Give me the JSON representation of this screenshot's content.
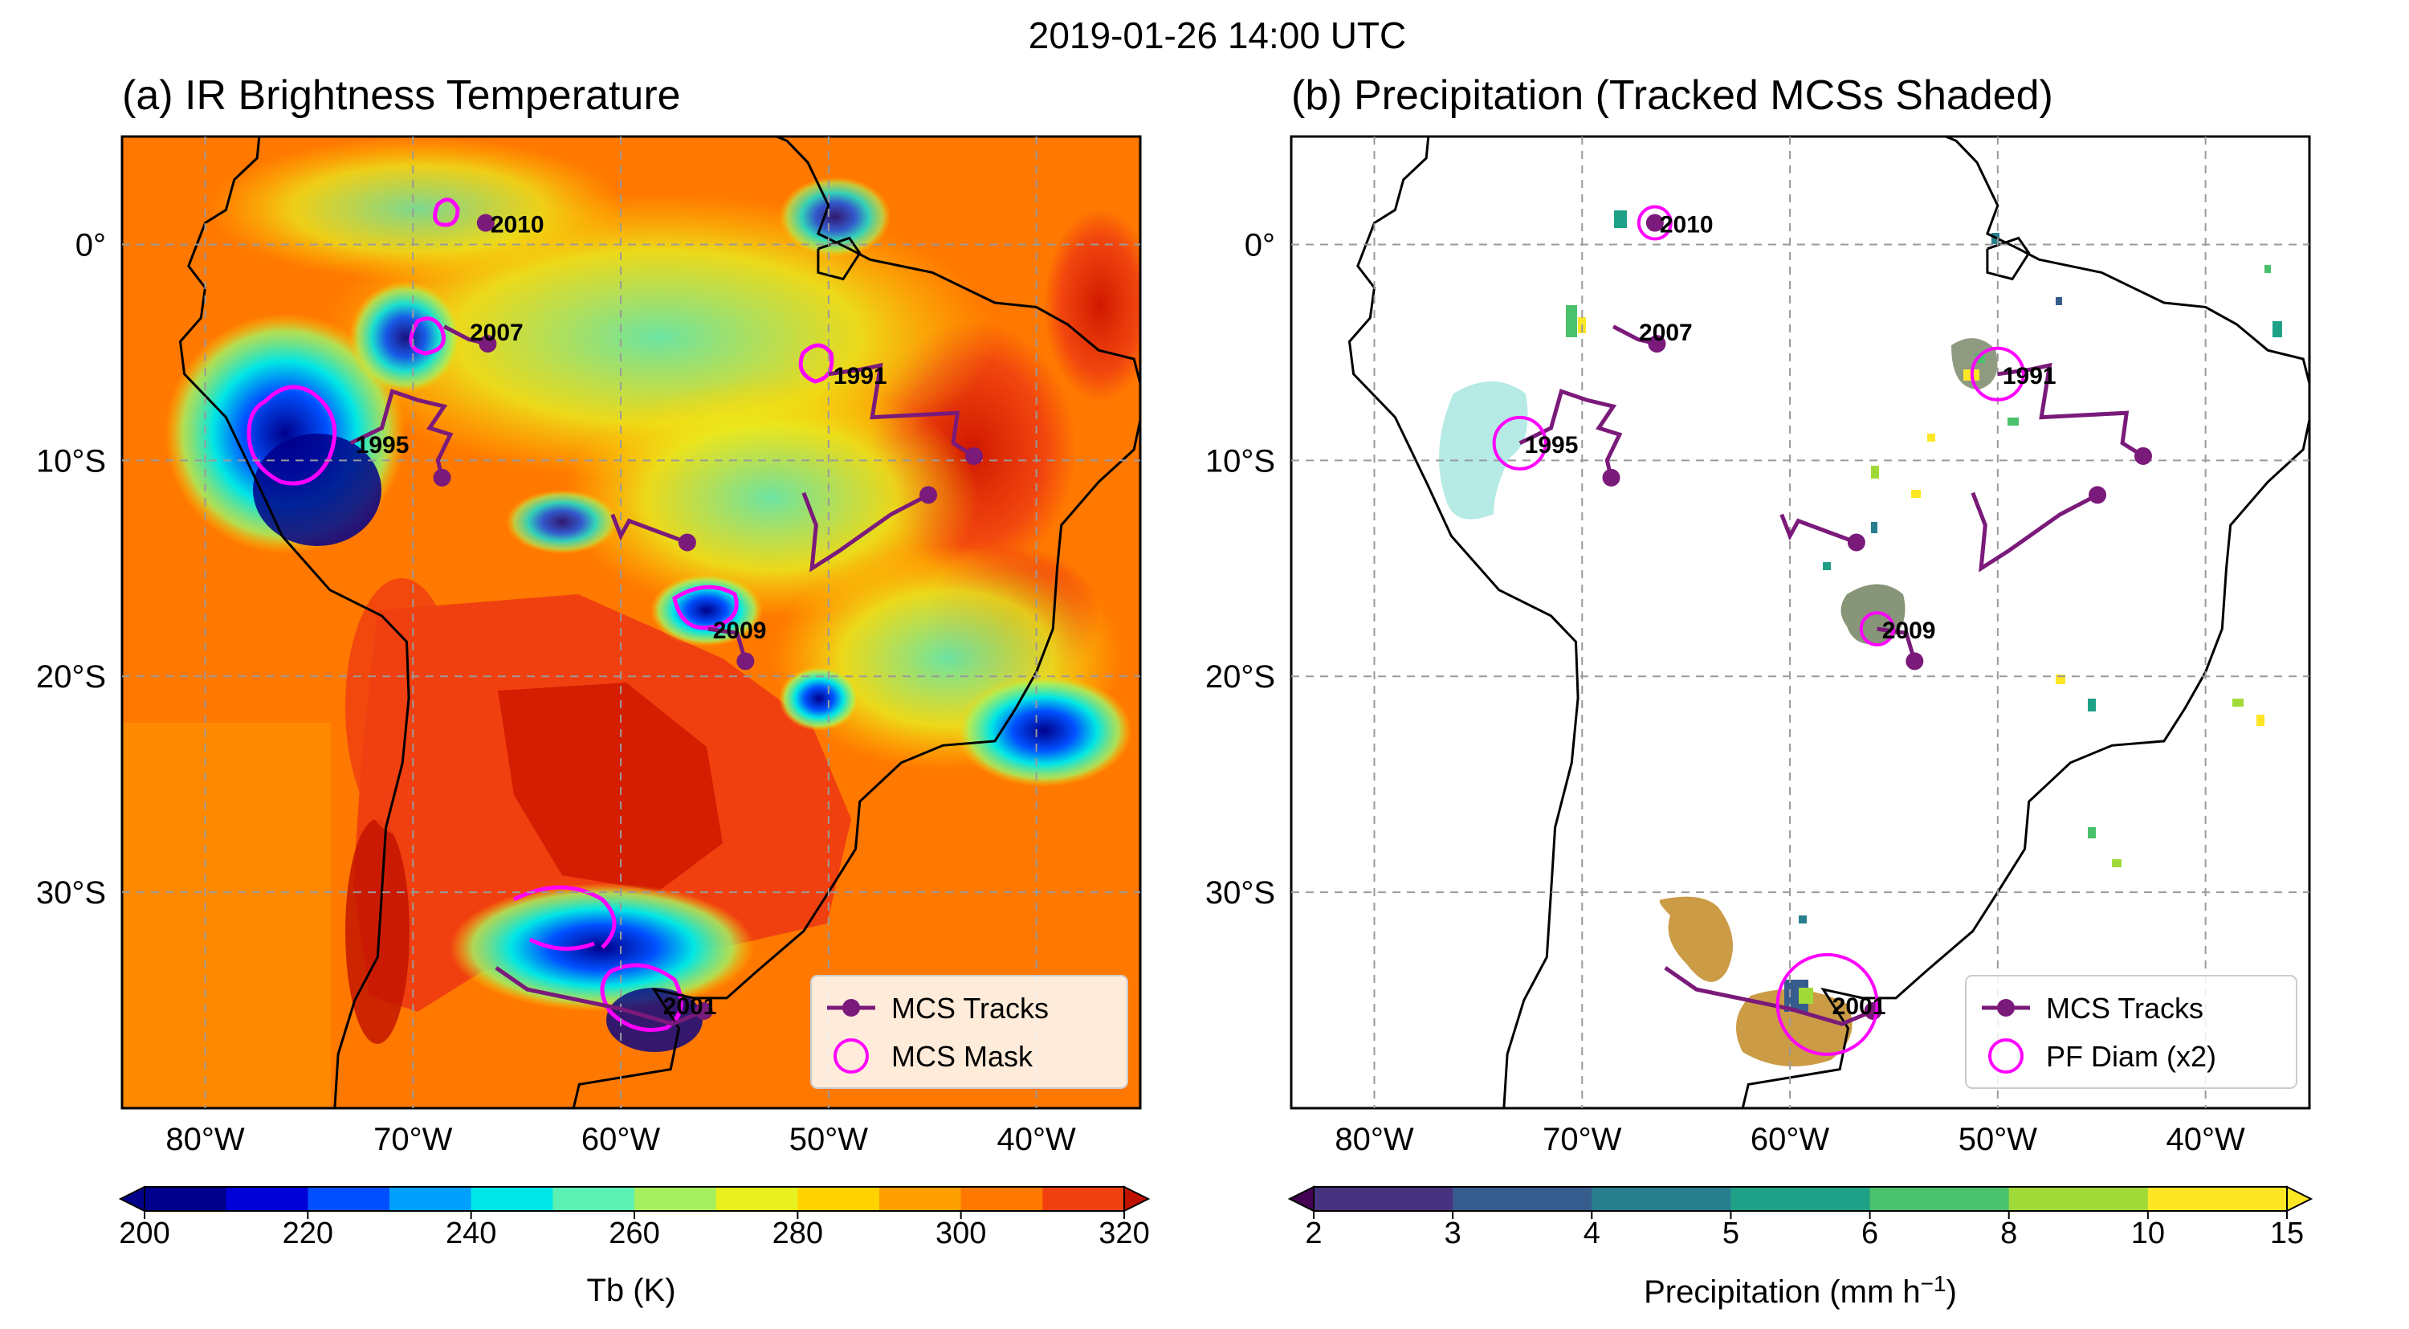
{
  "figure": {
    "suptitle": "2019-01-26 14:00 UTC"
  },
  "panel_a": {
    "title": "(a) IR Brightness Temperature",
    "legend": {
      "tracks": "MCS Tracks",
      "mask": "MCS Mask"
    },
    "colorbar": {
      "label": "Tb (K)",
      "ticks": [
        "200",
        "220",
        "240",
        "260",
        "280",
        "300",
        "320"
      ],
      "colors": [
        "#00008a",
        "#0000d8",
        "#0050ff",
        "#00a0ff",
        "#00e6e6",
        "#5cf0b4",
        "#a6f060",
        "#e8f020",
        "#ffd200",
        "#ffa000",
        "#ff7800",
        "#f04010",
        "#c01000"
      ]
    }
  },
  "panel_b": {
    "title": "(b) Precipitation (Tracked MCSs Shaded)",
    "legend": {
      "tracks": "MCS Tracks",
      "mask": "PF Diam (x2)"
    },
    "colorbar": {
      "label": "Precipitation (mm h",
      "label_sup": "−1",
      "label_end": ")",
      "ticks": [
        "2",
        "3",
        "4",
        "5",
        "6",
        "8",
        "10",
        "15"
      ],
      "colors": [
        "#46327e",
        "#365c8d",
        "#277f8e",
        "#1fa187",
        "#4ac16d",
        "#a0da39",
        "#fde725"
      ]
    }
  },
  "axes": {
    "lon_labels": [
      "80°W",
      "70°W",
      "60°W",
      "50°W",
      "40°W"
    ],
    "lat_labels": [
      "0°",
      "10°S",
      "20°S",
      "30°S"
    ]
  },
  "colors": {
    "track": "#7a1a7a",
    "mask": "#ff00ff",
    "coast": "#000000",
    "grid": "#9a9a9a"
  },
  "mcs": [
    {
      "id": "2010",
      "lon": -66.5,
      "lat": 1.0,
      "track": [
        [
          -66.5,
          1.0
        ]
      ]
    },
    {
      "id": "2007",
      "lon": -67.5,
      "lat": -4.0,
      "track": [
        [
          -68.5,
          -3.8
        ],
        [
          -67.3,
          -4.4
        ],
        [
          -66.4,
          -4.6
        ]
      ]
    },
    {
      "id": "1991",
      "lon": -50.0,
      "lat": -6.0,
      "track": [
        [
          -50.0,
          -6.0
        ],
        [
          -48.5,
          -5.8
        ],
        [
          -47.5,
          -5.6
        ],
        [
          -47.9,
          -8.0
        ],
        [
          -43.8,
          -7.8
        ],
        [
          -44.0,
          -9.2
        ],
        [
          -43.0,
          -9.8
        ]
      ]
    },
    {
      "id": "1995",
      "lon": -73.0,
      "lat": -9.2,
      "track": [
        [
          -73.0,
          -9.2
        ],
        [
          -71.5,
          -8.5
        ],
        [
          -71.0,
          -6.8
        ],
        [
          -69.8,
          -7.2
        ],
        [
          -68.5,
          -7.5
        ],
        [
          -69.2,
          -8.5
        ],
        [
          -68.2,
          -8.8
        ],
        [
          -68.8,
          -10.0
        ],
        [
          -68.6,
          -10.8
        ]
      ]
    },
    {
      "id": "2009",
      "lon": -55.8,
      "lat": -17.8,
      "track": [
        [
          -55.8,
          -17.8
        ],
        [
          -54.4,
          -18.0
        ],
        [
          -54.0,
          -19.3
        ]
      ]
    },
    {
      "id": "2001",
      "lon": -58.2,
      "lat": -35.2,
      "track": [
        [
          -66.0,
          -33.5
        ],
        [
          -64.5,
          -34.5
        ],
        [
          -60.0,
          -35.4
        ],
        [
          -57.5,
          -36.1
        ],
        [
          -56.0,
          -35.5
        ]
      ]
    },
    {
      "id": "",
      "lon": -56.8,
      "lat": -13.8,
      "track": [
        [
          -60.4,
          -12.5
        ],
        [
          -60.0,
          -13.5
        ],
        [
          -59.6,
          -12.8
        ],
        [
          -58.2,
          -13.3
        ],
        [
          -56.8,
          -13.8
        ]
      ]
    },
    {
      "id": "",
      "lon": -45.2,
      "lat": -11.6,
      "track": [
        [
          -51.2,
          -11.5
        ],
        [
          -50.6,
          -13.0
        ],
        [
          -50.8,
          -15.0
        ],
        [
          -49.5,
          -14.2
        ],
        [
          -47.0,
          -12.5
        ],
        [
          -45.2,
          -11.6
        ]
      ]
    }
  ]
}
